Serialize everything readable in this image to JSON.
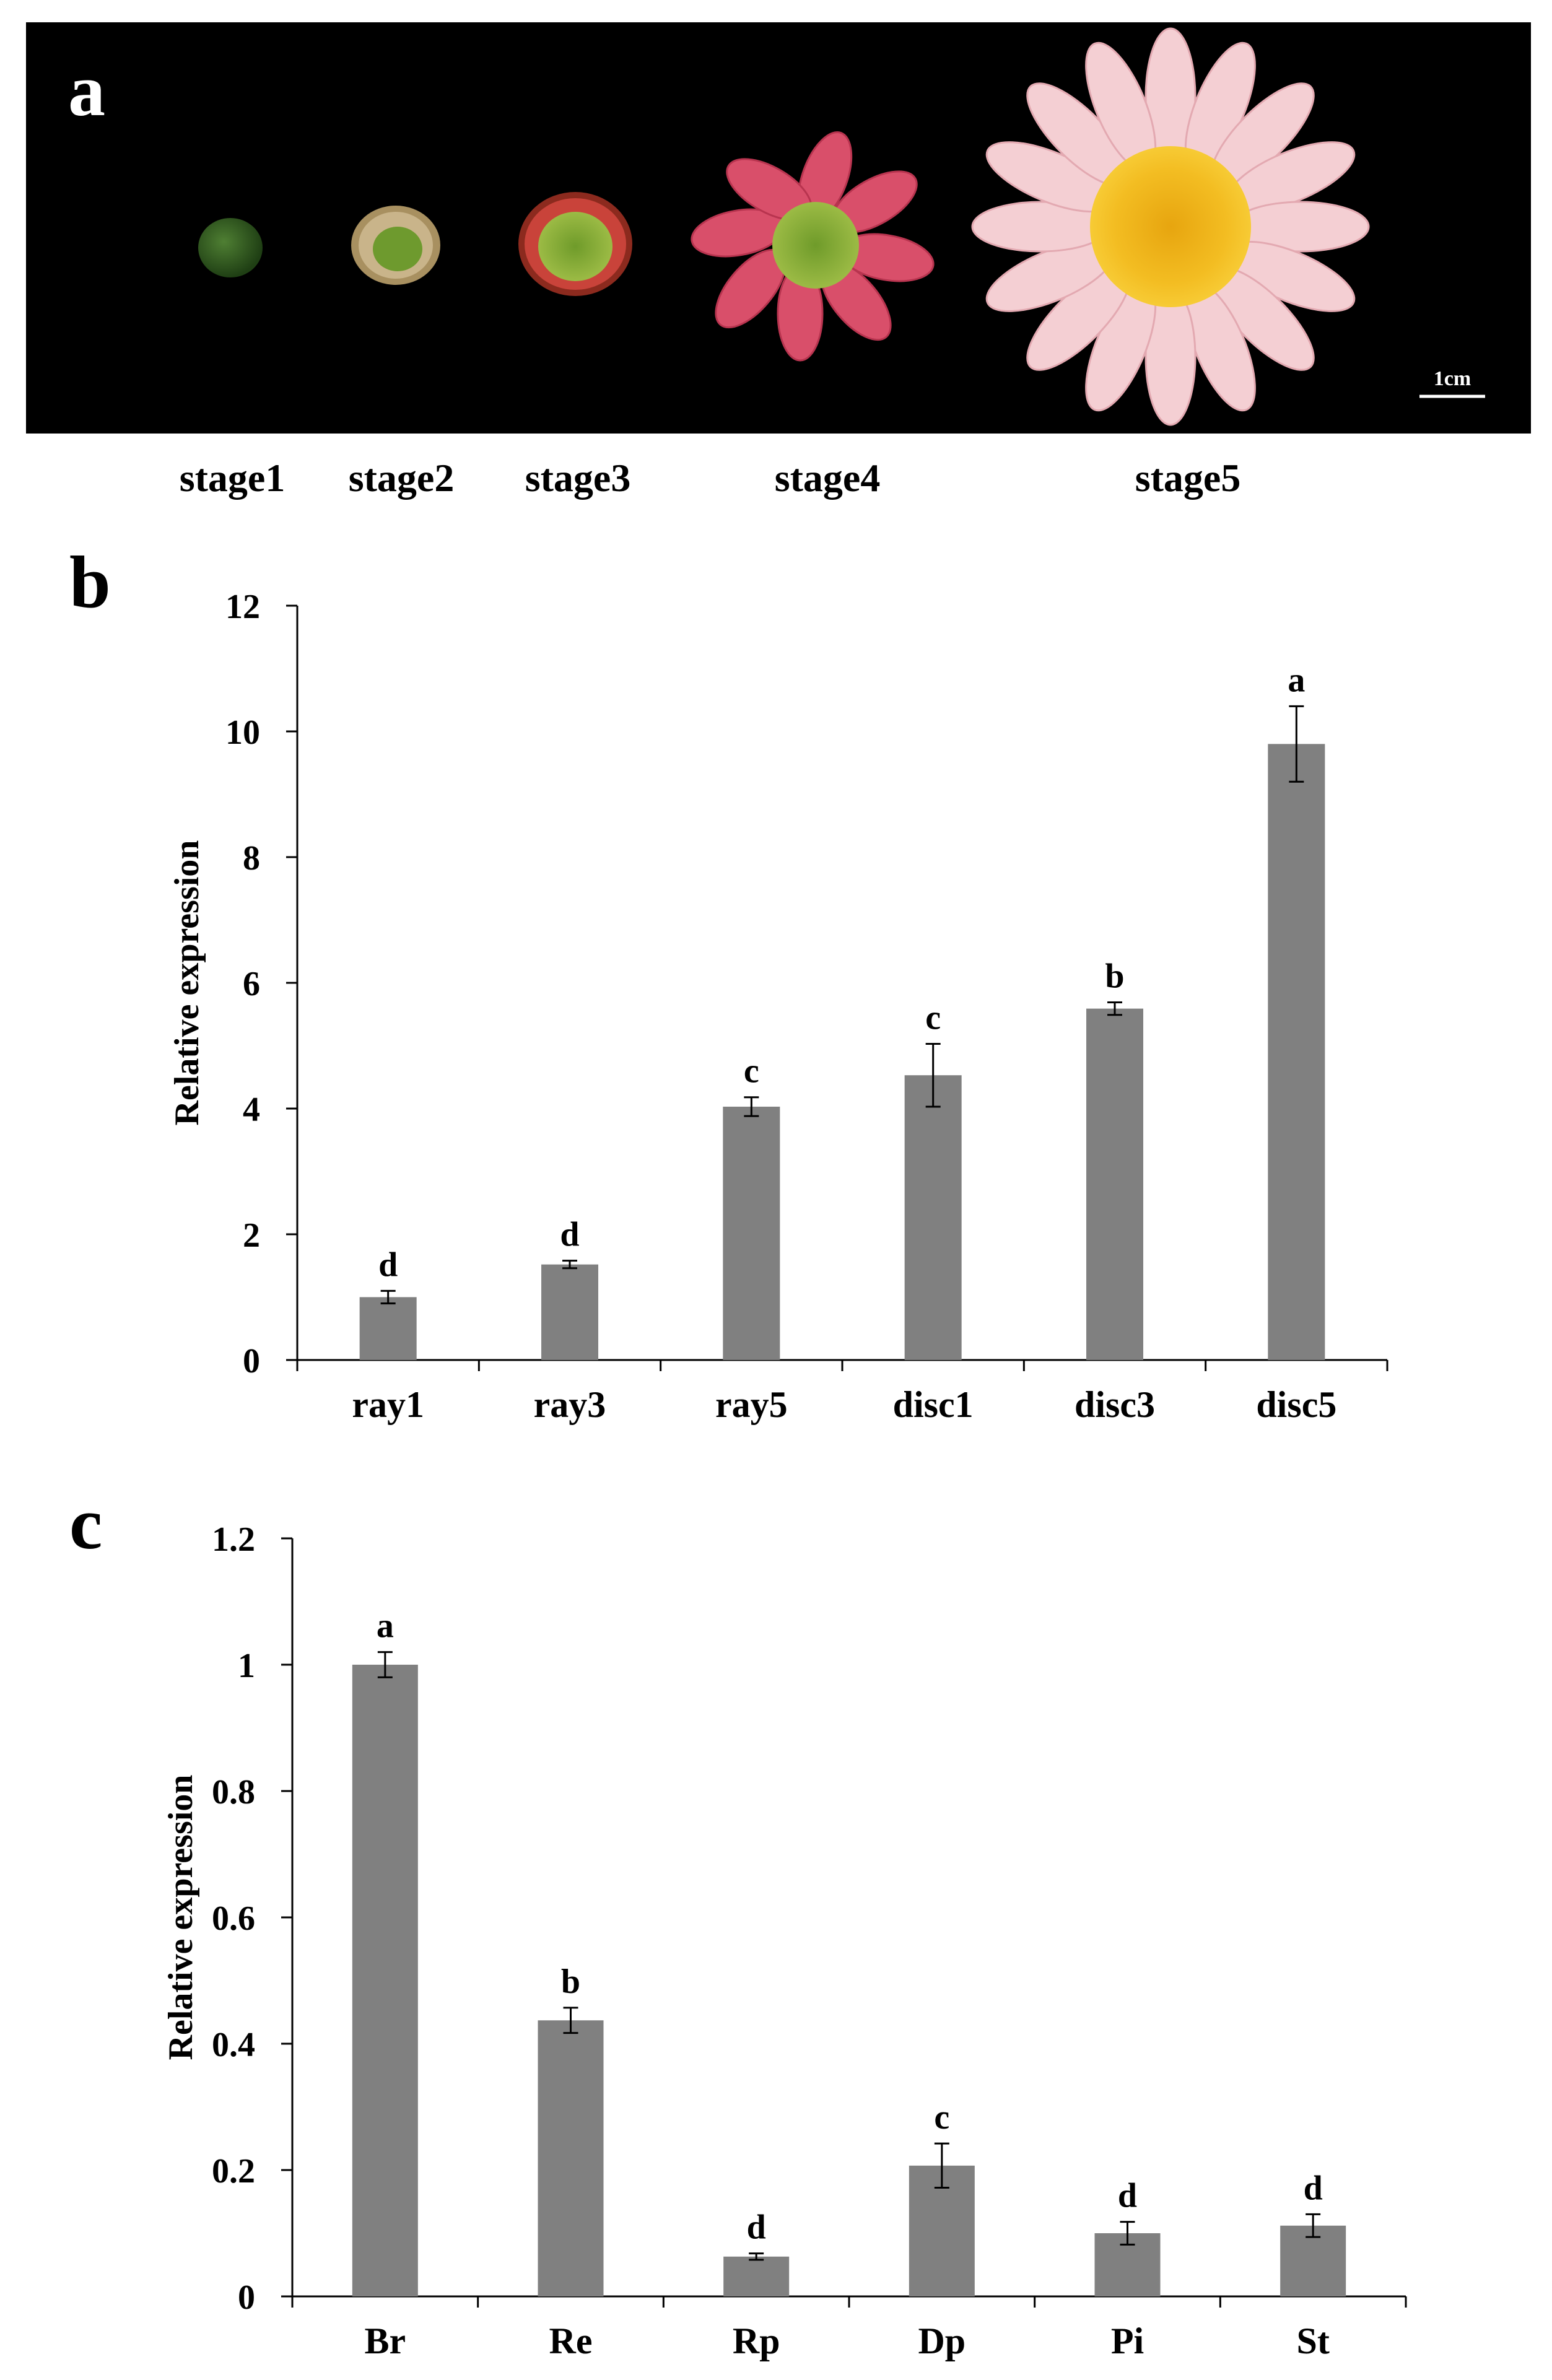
{
  "panels": {
    "a": "a",
    "b": "b",
    "c": "c"
  },
  "photo": {
    "stages": [
      "stage1",
      "stage2",
      "stage3",
      "stage4",
      "stage5"
    ],
    "scale_label": "1cm",
    "colors": {
      "background": "#000000",
      "bud": "#2f5a1f",
      "ray_pink": "#d94f6a",
      "ray_light": "#f6d4d8",
      "disc_yellow": "#f2b21a",
      "disc_green": "#8fae3a"
    }
  },
  "chart_data": [
    {
      "type": "bar",
      "panel": "b",
      "categories": [
        "ray1",
        "ray3",
        "ray5",
        "disc1",
        "disc3",
        "disc5"
      ],
      "values": [
        1.0,
        1.52,
        4.03,
        4.53,
        5.59,
        9.8
      ],
      "errors": [
        0.1,
        0.06,
        0.15,
        0.5,
        0.1,
        0.6
      ],
      "significance": [
        "d",
        "d",
        "c",
        "c",
        "b",
        "a"
      ],
      "ylabel": "Relative expression",
      "xlabel": "",
      "title": "",
      "ylim": [
        0,
        12
      ],
      "yticks": [
        0,
        2,
        4,
        6,
        8,
        10,
        12
      ],
      "ytick_labels": [
        "0",
        "2",
        "4",
        "6",
        "8",
        "10",
        "12"
      ],
      "bar_color": "#808080"
    },
    {
      "type": "bar",
      "panel": "c",
      "categories": [
        "Br",
        "Re",
        "Rp",
        "Dp",
        "Pi",
        "St"
      ],
      "values": [
        1.0,
        0.437,
        0.063,
        0.207,
        0.1,
        0.112
      ],
      "errors": [
        0.02,
        0.02,
        0.005,
        0.035,
        0.018,
        0.018
      ],
      "significance": [
        "a",
        "b",
        "d",
        "c",
        "d",
        "d"
      ],
      "ylabel": "Relative expression",
      "xlabel": "",
      "title": "",
      "ylim": [
        0,
        1.2
      ],
      "yticks": [
        0,
        0.2,
        0.4,
        0.6,
        0.8,
        1.0,
        1.2
      ],
      "ytick_labels": [
        "0",
        "0.2",
        "0.4",
        "0.6",
        "0.8",
        "1",
        "1.2"
      ],
      "bar_color": "#808080"
    }
  ]
}
